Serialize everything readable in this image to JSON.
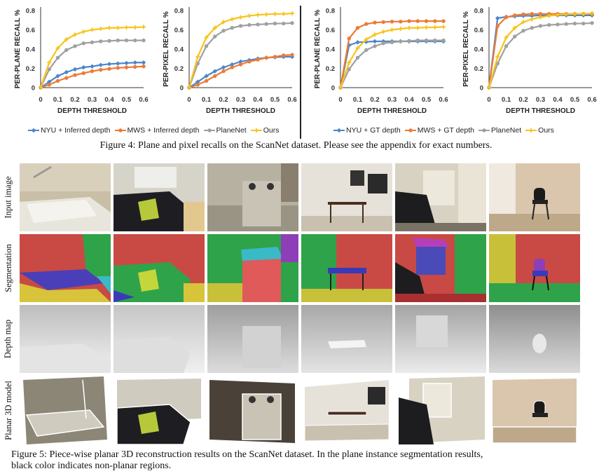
{
  "chart_data": [
    {
      "type": "line",
      "title": "",
      "xlabel": "DEPTH  THRESHOLD",
      "ylabel": "PER-PLANE RECALL %",
      "xlim": [
        0,
        0.6
      ],
      "ylim": [
        0,
        0.8
      ],
      "x": [
        0,
        0.05,
        0.1,
        0.15,
        0.2,
        0.25,
        0.3,
        0.35,
        0.4,
        0.45,
        0.5,
        0.55,
        0.6
      ],
      "xticks": [
        "0",
        "0.1",
        "0.2",
        "0.3",
        "0.4",
        "0.5",
        "0.6"
      ],
      "yticks": [
        "0",
        "0.2",
        "0.4",
        "0.6",
        "0.8"
      ],
      "grid": false,
      "series": [
        {
          "name": "NYU + Inferred depth",
          "color": "#4a86c8",
          "values": [
            0,
            0.06,
            0.12,
            0.16,
            0.19,
            0.21,
            0.22,
            0.235,
            0.245,
            0.25,
            0.255,
            0.26,
            0.26
          ]
        },
        {
          "name": "MWS + Inferred depth",
          "color": "#ec7b35",
          "values": [
            0,
            0.03,
            0.07,
            0.1,
            0.13,
            0.15,
            0.17,
            0.185,
            0.195,
            0.205,
            0.21,
            0.215,
            0.22
          ]
        },
        {
          "name": "PlaneNet",
          "color": "#a0a0a0",
          "values": [
            0,
            0.19,
            0.31,
            0.39,
            0.43,
            0.46,
            0.47,
            0.48,
            0.485,
            0.49,
            0.49,
            0.49,
            0.49
          ]
        },
        {
          "name": "Ours",
          "color": "#f8c31a",
          "values": [
            0,
            0.26,
            0.41,
            0.5,
            0.55,
            0.58,
            0.6,
            0.61,
            0.62,
            0.62,
            0.625,
            0.625,
            0.63
          ]
        }
      ]
    },
    {
      "type": "line",
      "title": "",
      "xlabel": "DEPTH THRESHOLD",
      "ylabel": "PER-PIXEL RECALL %",
      "xlim": [
        0,
        0.6
      ],
      "ylim": [
        0,
        0.8
      ],
      "x": [
        0,
        0.05,
        0.1,
        0.15,
        0.2,
        0.25,
        0.3,
        0.35,
        0.4,
        0.45,
        0.5,
        0.55,
        0.6
      ],
      "xticks": [
        "0",
        "0.1",
        "0.2",
        "0.3",
        "0.4",
        "0.5",
        "0.6"
      ],
      "yticks": [
        "0",
        "0.2",
        "0.4",
        "0.6",
        "0.8"
      ],
      "grid": false,
      "series": [
        {
          "name": "NYU + Inferred depth",
          "color": "#4a86c8",
          "values": [
            0,
            0.06,
            0.12,
            0.17,
            0.21,
            0.24,
            0.27,
            0.285,
            0.3,
            0.31,
            0.315,
            0.32,
            0.32
          ]
        },
        {
          "name": "MWS + Inferred depth",
          "color": "#ec7b35",
          "values": [
            0,
            0.03,
            0.07,
            0.12,
            0.17,
            0.21,
            0.24,
            0.27,
            0.29,
            0.31,
            0.32,
            0.335,
            0.34
          ]
        },
        {
          "name": "PlaneNet",
          "color": "#a0a0a0",
          "values": [
            0,
            0.25,
            0.43,
            0.53,
            0.59,
            0.62,
            0.64,
            0.65,
            0.655,
            0.66,
            0.665,
            0.665,
            0.67
          ]
        },
        {
          "name": "Ours",
          "color": "#f8c31a",
          "values": [
            0,
            0.32,
            0.52,
            0.62,
            0.68,
            0.71,
            0.73,
            0.745,
            0.755,
            0.76,
            0.765,
            0.765,
            0.77
          ]
        }
      ]
    },
    {
      "type": "line",
      "title": "",
      "xlabel": "DEPTH THRESHOLD",
      "ylabel": "PER-PLANE RECALL %",
      "xlim": [
        0,
        0.6
      ],
      "ylim": [
        0,
        0.8
      ],
      "x": [
        0,
        0.05,
        0.1,
        0.15,
        0.2,
        0.25,
        0.3,
        0.35,
        0.4,
        0.45,
        0.5,
        0.55,
        0.6
      ],
      "xticks": [
        "0",
        "0.1",
        "0.2",
        "0.3",
        "0.4",
        "0.5",
        "0.6"
      ],
      "yticks": [
        "0",
        "0.2",
        "0.4",
        "0.6",
        "0.8"
      ],
      "grid": false,
      "series": [
        {
          "name": "NYU + GT depth",
          "color": "#4a86c8",
          "values": [
            0,
            0.44,
            0.47,
            0.475,
            0.48,
            0.48,
            0.48,
            0.48,
            0.48,
            0.48,
            0.48,
            0.48,
            0.48
          ]
        },
        {
          "name": "MWS + GT depth",
          "color": "#ec7b35",
          "values": [
            0,
            0.51,
            0.62,
            0.66,
            0.675,
            0.68,
            0.685,
            0.685,
            0.69,
            0.69,
            0.69,
            0.69,
            0.69
          ]
        },
        {
          "name": "PlaneNet",
          "color": "#a0a0a0",
          "values": [
            0,
            0.19,
            0.31,
            0.39,
            0.43,
            0.46,
            0.47,
            0.48,
            0.485,
            0.49,
            0.49,
            0.49,
            0.49
          ]
        },
        {
          "name": "Ours",
          "color": "#f8c31a",
          "values": [
            0,
            0.26,
            0.41,
            0.5,
            0.55,
            0.58,
            0.6,
            0.61,
            0.62,
            0.62,
            0.625,
            0.625,
            0.63
          ]
        }
      ]
    },
    {
      "type": "line",
      "title": "",
      "xlabel": "DEPTH THRESHOLD",
      "ylabel": "PER-PIXEL RECALL %",
      "xlim": [
        0,
        0.6
      ],
      "ylim": [
        0,
        0.8
      ],
      "x": [
        0,
        0.05,
        0.1,
        0.15,
        0.2,
        0.25,
        0.3,
        0.35,
        0.4,
        0.45,
        0.5,
        0.55,
        0.6
      ],
      "xticks": [
        "0",
        "0.1",
        "0.2",
        "0.3",
        "0.4",
        "0.5",
        "0.6"
      ],
      "yticks": [
        "0",
        "0.2",
        "0.4",
        "0.6",
        "0.8"
      ],
      "grid": false,
      "series": [
        {
          "name": "NYU + GT depth",
          "color": "#4a86c8",
          "values": [
            0,
            0.72,
            0.735,
            0.74,
            0.745,
            0.745,
            0.75,
            0.75,
            0.75,
            0.75,
            0.75,
            0.75,
            0.75
          ]
        },
        {
          "name": "MWS + GT depth",
          "color": "#ec7b35",
          "values": [
            0,
            0.64,
            0.73,
            0.75,
            0.76,
            0.765,
            0.765,
            0.765,
            0.765,
            0.765,
            0.765,
            0.765,
            0.765
          ]
        },
        {
          "name": "PlaneNet",
          "color": "#a0a0a0",
          "values": [
            0,
            0.25,
            0.43,
            0.53,
            0.59,
            0.62,
            0.64,
            0.65,
            0.655,
            0.66,
            0.665,
            0.665,
            0.67
          ]
        },
        {
          "name": "Ours",
          "color": "#f8c31a",
          "values": [
            0,
            0.32,
            0.52,
            0.62,
            0.68,
            0.71,
            0.73,
            0.745,
            0.755,
            0.76,
            0.765,
            0.765,
            0.77
          ]
        }
      ]
    }
  ],
  "legends": {
    "left": [
      {
        "name": "NYU + Inferred depth",
        "color": "#4a86c8",
        "marker": "diamond"
      },
      {
        "name": "MWS + Inferred depth",
        "color": "#ec7b35",
        "marker": "circle"
      },
      {
        "name": "PlaneNet",
        "color": "#a0a0a0",
        "marker": "circle"
      },
      {
        "name": "Ours",
        "color": "#f8c31a",
        "marker": "cross"
      }
    ],
    "right": [
      {
        "name": "NYU + GT depth",
        "color": "#4a86c8",
        "marker": "diamond"
      },
      {
        "name": "MWS + GT depth",
        "color": "#ec7b35",
        "marker": "circle"
      },
      {
        "name": "PlaneNet",
        "color": "#a0a0a0",
        "marker": "circle"
      },
      {
        "name": "Ours",
        "color": "#f8c31a",
        "marker": "cross"
      }
    ]
  },
  "figure4": {
    "caption": "Figure 4: Plane and pixel recalls on the ScanNet dataset. Please see the appendix for exact numbers."
  },
  "figure5": {
    "row_labels": [
      "Input image",
      "Segmentation",
      "Depth map",
      "Planar 3D model"
    ],
    "caption_line1": "Figure 5: Piece-wise planar 3D reconstruction results on the ScanNet dataset. In the plane instance segmentation results,",
    "caption_line2": "black color indicates non-planar regions."
  }
}
